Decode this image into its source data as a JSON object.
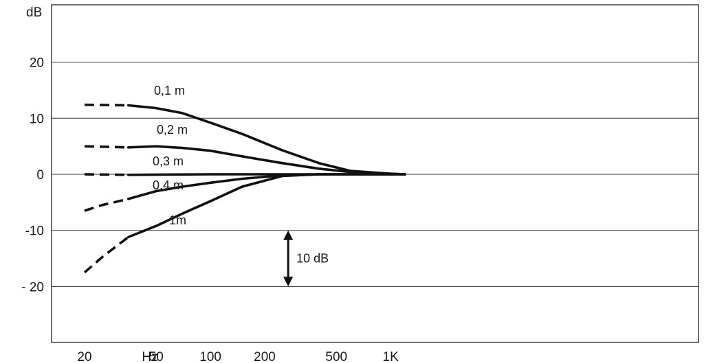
{
  "chart_data": {
    "type": "line",
    "ylabel": "dB",
    "x_unit_label": "Hz",
    "x_scale": "log",
    "xlim": [
      18,
      1500
    ],
    "ylim": [
      -30,
      30
    ],
    "x_ticks": [
      {
        "value": 20,
        "label": "20"
      },
      {
        "value": 50,
        "label": "50"
      },
      {
        "value": 100,
        "label": "100"
      },
      {
        "value": 200,
        "label": "200"
      },
      {
        "value": 500,
        "label": "500"
      },
      {
        "value": 1000,
        "label": "1K"
      }
    ],
    "y_ticks": [
      {
        "value": 20,
        "label": "20"
      },
      {
        "value": 10,
        "label": "10"
      },
      {
        "value": 0,
        "label": "0"
      },
      {
        "value": -10,
        "label": "-10"
      },
      {
        "value": -20,
        "label": "- 20"
      }
    ],
    "grid": "horizontal",
    "series": [
      {
        "name": "0,1 m",
        "dashed_points": [
          [
            20,
            12.4
          ],
          [
            35,
            12.3
          ]
        ],
        "points": [
          [
            35,
            12.3
          ],
          [
            50,
            11.8
          ],
          [
            70,
            10.9
          ],
          [
            100,
            9.2
          ],
          [
            150,
            7.2
          ],
          [
            250,
            4.3
          ],
          [
            400,
            2.0
          ],
          [
            600,
            0.6
          ],
          [
            1000,
            0.1
          ],
          [
            1200,
            0.0
          ]
        ]
      },
      {
        "name": "0,2 m",
        "dashed_points": [
          [
            20,
            5.0
          ],
          [
            35,
            4.8
          ]
        ],
        "points": [
          [
            35,
            4.8
          ],
          [
            50,
            5.0
          ],
          [
            70,
            4.7
          ],
          [
            100,
            4.2
          ],
          [
            150,
            3.2
          ],
          [
            250,
            2.0
          ],
          [
            400,
            1.0
          ],
          [
            600,
            0.4
          ],
          [
            1000,
            0.1
          ],
          [
            1200,
            0.0
          ]
        ]
      },
      {
        "name": "0,3 m",
        "dashed_points": [
          [
            20,
            0.0
          ],
          [
            35,
            -0.1
          ]
        ],
        "points": [
          [
            35,
            -0.1
          ],
          [
            100,
            0.0
          ],
          [
            300,
            0.0
          ],
          [
            1200,
            0.0
          ]
        ]
      },
      {
        "name": "0,4 m",
        "dashed_points": [
          [
            20,
            -6.5
          ],
          [
            25,
            -5.5
          ],
          [
            35,
            -4.4
          ]
        ],
        "points": [
          [
            35,
            -4.4
          ],
          [
            50,
            -3.0
          ],
          [
            70,
            -2.2
          ],
          [
            100,
            -1.5
          ],
          [
            150,
            -0.8
          ],
          [
            250,
            -0.2
          ],
          [
            400,
            0.0
          ],
          [
            1200,
            0.0
          ]
        ]
      },
      {
        "name": "1m",
        "dashed_points": [
          [
            20,
            -17.5
          ],
          [
            25,
            -14.8
          ],
          [
            35,
            -11.2
          ]
        ],
        "points": [
          [
            35,
            -11.2
          ],
          [
            50,
            -9.2
          ],
          [
            70,
            -7.0
          ],
          [
            100,
            -4.8
          ],
          [
            150,
            -2.2
          ],
          [
            250,
            -0.3
          ],
          [
            400,
            0.0
          ],
          [
            1200,
            0.0
          ]
        ]
      }
    ],
    "annotations": [
      {
        "text": "10 dB",
        "type": "scale-bar",
        "x": 270,
        "y_from": -20,
        "y_to": -10
      }
    ]
  }
}
